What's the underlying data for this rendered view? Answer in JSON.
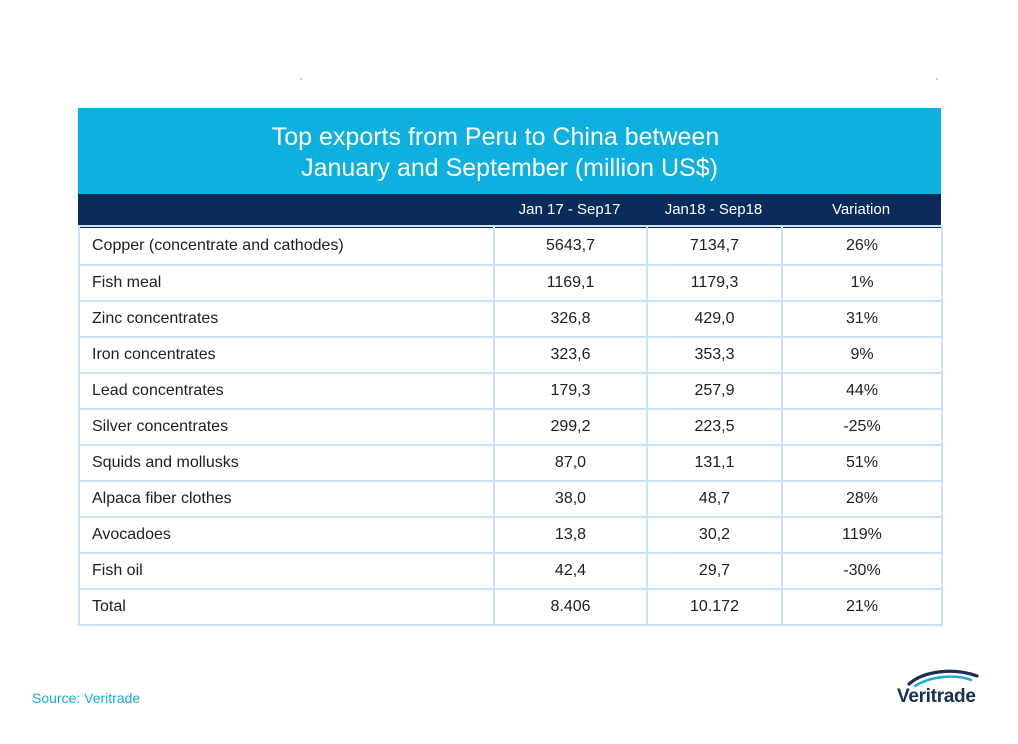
{
  "chart_data": {
    "type": "table",
    "title": "Top exports from Peru to China between January and September (million US$)",
    "title_lines": [
      "Top exports from Peru to China between",
      "January and September (million US$)"
    ],
    "columns": [
      "",
      "Jan 17 - Sep17",
      "Jan18 - Sep18",
      "Variation"
    ],
    "rows": [
      {
        "product": "Copper (concentrate and cathodes)",
        "jan17_sep17": "5643,7",
        "jan18_sep18": "7134,7",
        "variation": "26%"
      },
      {
        "product": "Fish meal",
        "jan17_sep17": "1169,1",
        "jan18_sep18": "1179,3",
        "variation": "1%"
      },
      {
        "product": "Zinc concentrates",
        "jan17_sep17": "326,8",
        "jan18_sep18": "429,0",
        "variation": "31%"
      },
      {
        "product": "Iron concentrates",
        "jan17_sep17": "323,6",
        "jan18_sep18": "353,3",
        "variation": "9%"
      },
      {
        "product": "Lead concentrates",
        "jan17_sep17": "179,3",
        "jan18_sep18": "257,9",
        "variation": "44%"
      },
      {
        "product": "Silver concentrates",
        "jan17_sep17": "299,2",
        "jan18_sep18": "223,5",
        "variation": "-25%"
      },
      {
        "product": "Squids and mollusks",
        "jan17_sep17": "87,0",
        "jan18_sep18": "131,1",
        "variation": "51%"
      },
      {
        "product": "Alpaca fiber clothes",
        "jan17_sep17": "38,0",
        "jan18_sep18": "48,7",
        "variation": "28%"
      },
      {
        "product": "Avocadoes",
        "jan17_sep17": "13,8",
        "jan18_sep18": "30,2",
        "variation": "119%"
      },
      {
        "product": "Fish oil",
        "jan17_sep17": "42,4",
        "jan18_sep18": "29,7",
        "variation": "-30%"
      },
      {
        "product": "Total",
        "jan17_sep17": "8.406",
        "jan18_sep18": "10.172",
        "variation": "21%"
      }
    ]
  },
  "source": "Source: Veritrade",
  "logo": {
    "text": "Veritrade",
    "icon": "veritrade-swoosh-icon"
  },
  "colors": {
    "title_band": "#0db0de",
    "header_band": "#0b2c5a",
    "grid": "#c7e4f2",
    "source_text": "#1aa9da",
    "logo_text": "#1b2e56"
  }
}
